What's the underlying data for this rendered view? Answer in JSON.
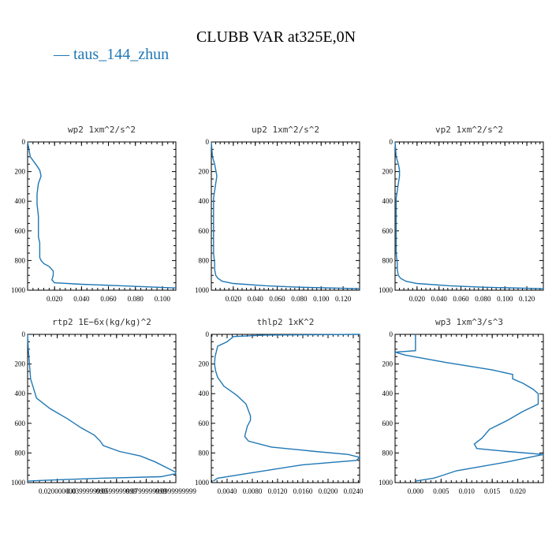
{
  "title": "CLUBB VAR at325E,0N",
  "legend": {
    "label": "taus_144_zhun",
    "color": "#1f77b4"
  },
  "chart_data": [
    {
      "type": "line",
      "title": "wp2  1xm^2/s^2",
      "ylim": [
        1000,
        0
      ],
      "xlim": [
        0,
        0.11
      ],
      "yticks": [
        "0",
        "200",
        "400",
        "600",
        "800",
        "1000"
      ],
      "xticks": [
        "0.020",
        "0.040",
        "0.060",
        "0.080",
        "0.100"
      ],
      "series": [
        {
          "x": [
            0,
            0.002,
            0.006,
            0.009,
            0.01,
            0.008,
            0.007,
            0.007,
            0.008,
            0.008,
            0.008,
            0.009,
            0.009,
            0.009,
            0.01,
            0.012,
            0.016,
            0.019,
            0.019,
            0.018,
            0.02,
            0.04,
            0.07,
            0.11
          ],
          "y": [
            0,
            100,
            150,
            190,
            230,
            280,
            350,
            420,
            500,
            580,
            640,
            680,
            720,
            780,
            800,
            820,
            840,
            870,
            900,
            930,
            950,
            960,
            970,
            985
          ]
        }
      ]
    },
    {
      "type": "line",
      "title": "up2  1xm^2/s^2",
      "ylim": [
        1000,
        0
      ],
      "xlim": [
        0,
        0.135
      ],
      "yticks": [
        "0",
        "200",
        "400",
        "600",
        "800",
        "1000"
      ],
      "xticks": [
        "0.020",
        "0.040",
        "0.060",
        "0.080",
        "0.100",
        "0.120"
      ],
      "series": [
        {
          "x": [
            0,
            0.001,
            0.003,
            0.004,
            0.005,
            0.004,
            0.003,
            0.002,
            0.002,
            0.002,
            0.002,
            0.002,
            0.003,
            0.003,
            0.004,
            0.006,
            0.01,
            0.02,
            0.05,
            0.08,
            0.135
          ],
          "y": [
            0,
            100,
            150,
            190,
            230,
            280,
            330,
            380,
            450,
            550,
            650,
            750,
            820,
            860,
            900,
            920,
            940,
            955,
            970,
            980,
            990
          ]
        }
      ]
    },
    {
      "type": "line",
      "title": "vp2  1xm^2/s^2",
      "ylim": [
        1000,
        0
      ],
      "xlim": [
        0,
        0.135
      ],
      "yticks": [
        "0",
        "200",
        "400",
        "600",
        "800",
        "1000"
      ],
      "xticks": [
        "0.020",
        "0.040",
        "0.060",
        "0.080",
        "0.100",
        "0.120"
      ],
      "series": [
        {
          "x": [
            0,
            0.001,
            0.003,
            0.004,
            0.004,
            0.003,
            0.002,
            0.001,
            0.001,
            0.001,
            0.001,
            0.001,
            0.002,
            0.002,
            0.003,
            0.005,
            0.01,
            0.02,
            0.05,
            0.08,
            0.135
          ],
          "y": [
            0,
            100,
            150,
            190,
            230,
            280,
            330,
            380,
            450,
            550,
            650,
            750,
            820,
            860,
            900,
            920,
            940,
            955,
            970,
            980,
            990
          ]
        }
      ]
    },
    {
      "type": "line",
      "title": "rtp2  1E−6x(kg/kg)^2",
      "ylim": [
        1000,
        0
      ],
      "xlim": [
        0,
        0.0999999
      ],
      "yticks": [
        "0",
        "200",
        "400",
        "600",
        "800",
        "1000"
      ],
      "xticks": [
        "0.020000000",
        "0.0399999999",
        "0.0599999999",
        "0.0799999999",
        "0.0999999999"
      ],
      "series": [
        {
          "x": [
            0,
            0.0005,
            0.002,
            0.006,
            0.015,
            0.027,
            0.036,
            0.045,
            0.049,
            0.051,
            0.062,
            0.076,
            0.086,
            0.094,
            0.0999,
            0.0999,
            0.09,
            0.05,
            0.01,
            0.0005
          ],
          "y": [
            0,
            100,
            300,
            430,
            500,
            570,
            630,
            680,
            720,
            750,
            790,
            820,
            860,
            900,
            930,
            940,
            960,
            970,
            985,
            990
          ]
        }
      ]
    },
    {
      "type": "line",
      "title": "thlp2  1xK^2",
      "ylim": [
        1000,
        0
      ],
      "xlim": [
        0.0015,
        0.025
      ],
      "yticks": [
        "0",
        "200",
        "400",
        "600",
        "800",
        "1000"
      ],
      "xticks": [
        "0.0040",
        "0.0080",
        "0.0120",
        "0.0160",
        "0.0200",
        "0.0240"
      ],
      "series": [
        {
          "x": [
            0.025,
            0.018,
            0.01,
            0.005,
            0.004,
            0.0025,
            0.0021,
            0.002,
            0.0022,
            0.0025,
            0.0035,
            0.0055,
            0.007,
            0.0077,
            0.0077,
            0.0072,
            0.0069,
            0.0068,
            0.0074,
            0.011,
            0.018,
            0.0232,
            0.025,
            0.0245,
            0.016,
            0.007,
            0.0025,
            0.0018
          ],
          "y": [
            0,
            2,
            5,
            15,
            50,
            80,
            150,
            200,
            250,
            290,
            350,
            410,
            470,
            550,
            580,
            620,
            670,
            690,
            720,
            760,
            790,
            810,
            830,
            850,
            880,
            940,
            970,
            990
          ]
        }
      ]
    },
    {
      "type": "line",
      "title": "wp3  1xm^3/s^3",
      "ylim": [
        1000,
        0
      ],
      "xlim": [
        -0.004,
        0.025
      ],
      "yticks": [
        "0",
        "200",
        "400",
        "600",
        "800",
        "1000"
      ],
      "xticks": [
        "0.000",
        "0.005",
        "0.010",
        "0.015",
        "0.020"
      ],
      "series": [
        {
          "x": [
            0,
            0,
            -0.004,
            -0.002,
            0.006,
            0.015,
            0.019,
            0.019,
            0.021,
            0.023,
            0.024,
            0.024,
            0.021,
            0.018,
            0.0145,
            0.013,
            0.0115,
            0.012,
            0.018,
            0.025,
            0.018,
            0.008,
            0.0045,
            0.0035,
            0
          ],
          "y": [
            0,
            110,
            120,
            140,
            190,
            240,
            270,
            300,
            330,
            370,
            400,
            470,
            520,
            580,
            640,
            700,
            740,
            770,
            790,
            810,
            860,
            920,
            960,
            970,
            990
          ]
        }
      ]
    }
  ]
}
